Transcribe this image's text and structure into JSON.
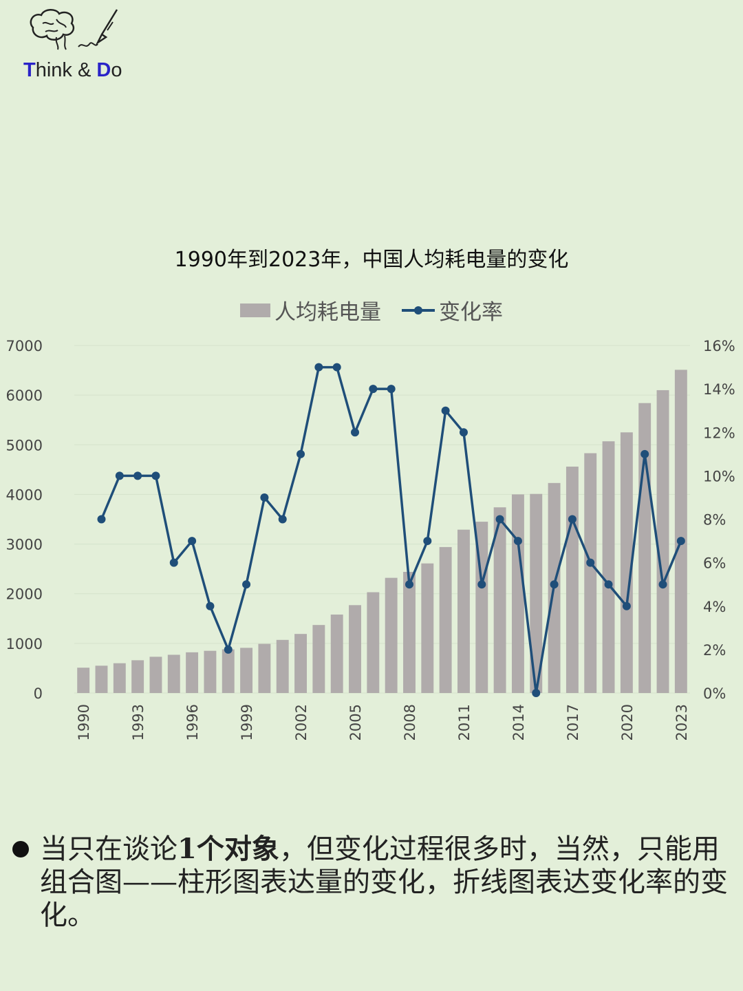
{
  "brand": {
    "think_initial": "T",
    "think_rest": "hink ",
    "amp": "& ",
    "do_initial": "D",
    "do_rest": "o"
  },
  "chart_data": {
    "type": "bar",
    "title": "1990年到2023年，中国人均耗电量的变化",
    "categories": [
      "1990",
      "1991",
      "1992",
      "1993",
      "1994",
      "1995",
      "1996",
      "1997",
      "1998",
      "1999",
      "2000",
      "2001",
      "2002",
      "2003",
      "2004",
      "2005",
      "2006",
      "2007",
      "2008",
      "2009",
      "2010",
      "2011",
      "2012",
      "2013",
      "2014",
      "2015",
      "2016",
      "2017",
      "2018",
      "2019",
      "2020",
      "2021",
      "2022",
      "2023"
    ],
    "x_tick_labels": [
      "1990",
      "1993",
      "1996",
      "1999",
      "2002",
      "2005",
      "2008",
      "2011",
      "2014",
      "2017",
      "2020",
      "2023"
    ],
    "ylim": [
      0,
      7000
    ],
    "y_ticks": [
      "7000",
      "6000",
      "5000",
      "4000",
      "3000",
      "2000",
      "1000",
      "0"
    ],
    "y2lim": [
      0,
      16
    ],
    "y2_ticks": [
      "16%",
      "14%",
      "12%",
      "10%",
      "8%",
      "6%",
      "4%",
      "2%",
      "0%"
    ],
    "grid": true,
    "legend_position": "top",
    "series": [
      {
        "name": "人均耗电量",
        "kind": "bar",
        "axis": "left",
        "color": "#b0abab",
        "values": [
          510,
          550,
          600,
          660,
          730,
          770,
          820,
          850,
          880,
          910,
          990,
          1070,
          1190,
          1370,
          1580,
          1770,
          2030,
          2320,
          2440,
          2610,
          2940,
          3290,
          3450,
          3740,
          4000,
          4010,
          4230,
          4560,
          4830,
          5070,
          5250,
          5840,
          6100,
          6510
        ]
      },
      {
        "name": "变化率",
        "kind": "line",
        "axis": "right",
        "color": "#1f4e79",
        "values": [
          null,
          8,
          10,
          10,
          10,
          6,
          7,
          4,
          2,
          5,
          9,
          8,
          11,
          15,
          15,
          12,
          14,
          14,
          5,
          7,
          13,
          12,
          5,
          8,
          7,
          0,
          5,
          8,
          6,
          5,
          4,
          11,
          5,
          7
        ]
      }
    ]
  },
  "note": {
    "part1": "当只在谈论",
    "bold": "1个对象",
    "part2": "，但变化过程很多时，当然，只能用组合图——柱形图表达量的变化，折线图表达变化率的变化。"
  }
}
